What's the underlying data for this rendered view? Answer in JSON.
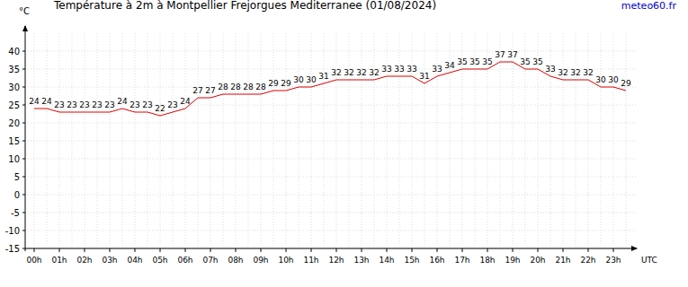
{
  "chart_data": {
    "type": "line",
    "title": "Température à 2m à Montpellier Frejorgues Mediterranee (01/08/2024)",
    "source": "meteo60.fr",
    "y_label": "°C",
    "x_label": "UTC",
    "categories": [
      "00h",
      null,
      "01h",
      null,
      "02h",
      null,
      "03h",
      null,
      "04h",
      null,
      "05h",
      null,
      "06h",
      null,
      "07h",
      null,
      "08h",
      null,
      "09h",
      null,
      "10h",
      null,
      "11h",
      null,
      "12h",
      null,
      "13h",
      null,
      "14h",
      null,
      "15h",
      null,
      "16h",
      null,
      "17h",
      null,
      "18h",
      null,
      "19h",
      null,
      "20h",
      null,
      "21h",
      null,
      "22h",
      null,
      "23h",
      null
    ],
    "values": [
      24,
      24,
      23,
      23,
      23,
      23,
      23,
      24,
      23,
      23,
      22,
      23,
      24,
      27,
      27,
      28,
      28,
      28,
      28,
      29,
      29,
      30,
      30,
      31,
      32,
      32,
      32,
      32,
      33,
      33,
      33,
      31,
      33,
      34,
      35,
      35,
      35,
      37,
      37,
      35,
      35,
      33,
      32,
      32,
      32,
      30,
      30,
      29
    ],
    "color": "#dd0000",
    "ylim": [
      -15,
      45
    ],
    "yticks": [
      -15,
      -10,
      -5,
      0,
      5,
      10,
      15,
      20,
      25,
      30,
      35,
      40
    ],
    "grid": true,
    "data_labels": true
  }
}
